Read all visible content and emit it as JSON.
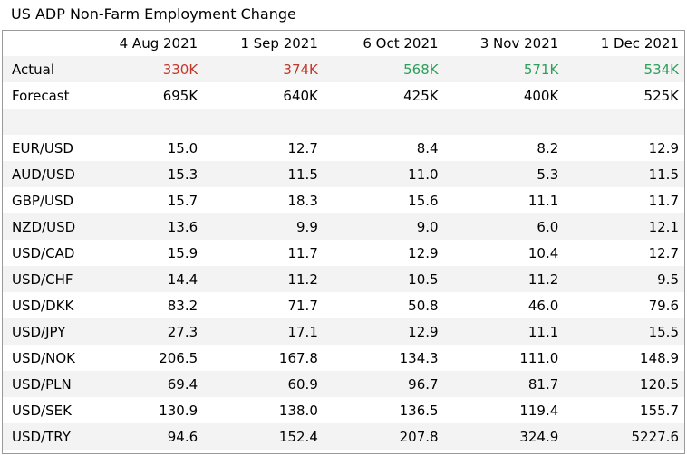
{
  "title": "US ADP Non-Farm Employment Change",
  "columns": [
    "4 Aug 2021",
    "1 Sep 2021",
    "6 Oct 2021",
    "3 Nov 2021",
    "1 Dec 2021"
  ],
  "actual": {
    "label": "Actual",
    "values": [
      "330K",
      "374K",
      "568K",
      "571K",
      "534K"
    ],
    "colors": [
      "#c0392b",
      "#c0392b",
      "#2e9e5b",
      "#2e9e5b",
      "#2e9e5b"
    ]
  },
  "forecast": {
    "label": "Forecast",
    "values": [
      "695K",
      "640K",
      "425K",
      "400K",
      "525K"
    ]
  },
  "pairs": [
    {
      "label": "EUR/USD",
      "values": [
        "15.0",
        "12.7",
        "8.4",
        "8.2",
        "12.9"
      ]
    },
    {
      "label": "AUD/USD",
      "values": [
        "15.3",
        "11.5",
        "11.0",
        "5.3",
        "11.5"
      ]
    },
    {
      "label": "GBP/USD",
      "values": [
        "15.7",
        "18.3",
        "15.6",
        "11.1",
        "11.7"
      ]
    },
    {
      "label": "NZD/USD",
      "values": [
        "13.6",
        "9.9",
        "9.0",
        "6.0",
        "12.1"
      ]
    },
    {
      "label": "USD/CAD",
      "values": [
        "15.9",
        "11.7",
        "12.9",
        "10.4",
        "12.7"
      ]
    },
    {
      "label": "USD/CHF",
      "values": [
        "14.4",
        "11.2",
        "10.5",
        "11.2",
        "9.5"
      ]
    },
    {
      "label": "USD/DKK",
      "values": [
        "83.2",
        "71.7",
        "50.8",
        "46.0",
        "79.6"
      ]
    },
    {
      "label": "USD/JPY",
      "values": [
        "27.3",
        "17.1",
        "12.9",
        "11.1",
        "15.5"
      ]
    },
    {
      "label": "USD/NOK",
      "values": [
        "206.5",
        "167.8",
        "134.3",
        "111.0",
        "148.9"
      ]
    },
    {
      "label": "USD/PLN",
      "values": [
        "69.4",
        "60.9",
        "96.7",
        "81.7",
        "120.5"
      ]
    },
    {
      "label": "USD/SEK",
      "values": [
        "130.9",
        "138.0",
        "136.5",
        "119.4",
        "155.7"
      ]
    },
    {
      "label": "USD/TRY",
      "values": [
        "94.6",
        "152.4",
        "207.8",
        "324.9",
        "5227.6"
      ]
    }
  ]
}
